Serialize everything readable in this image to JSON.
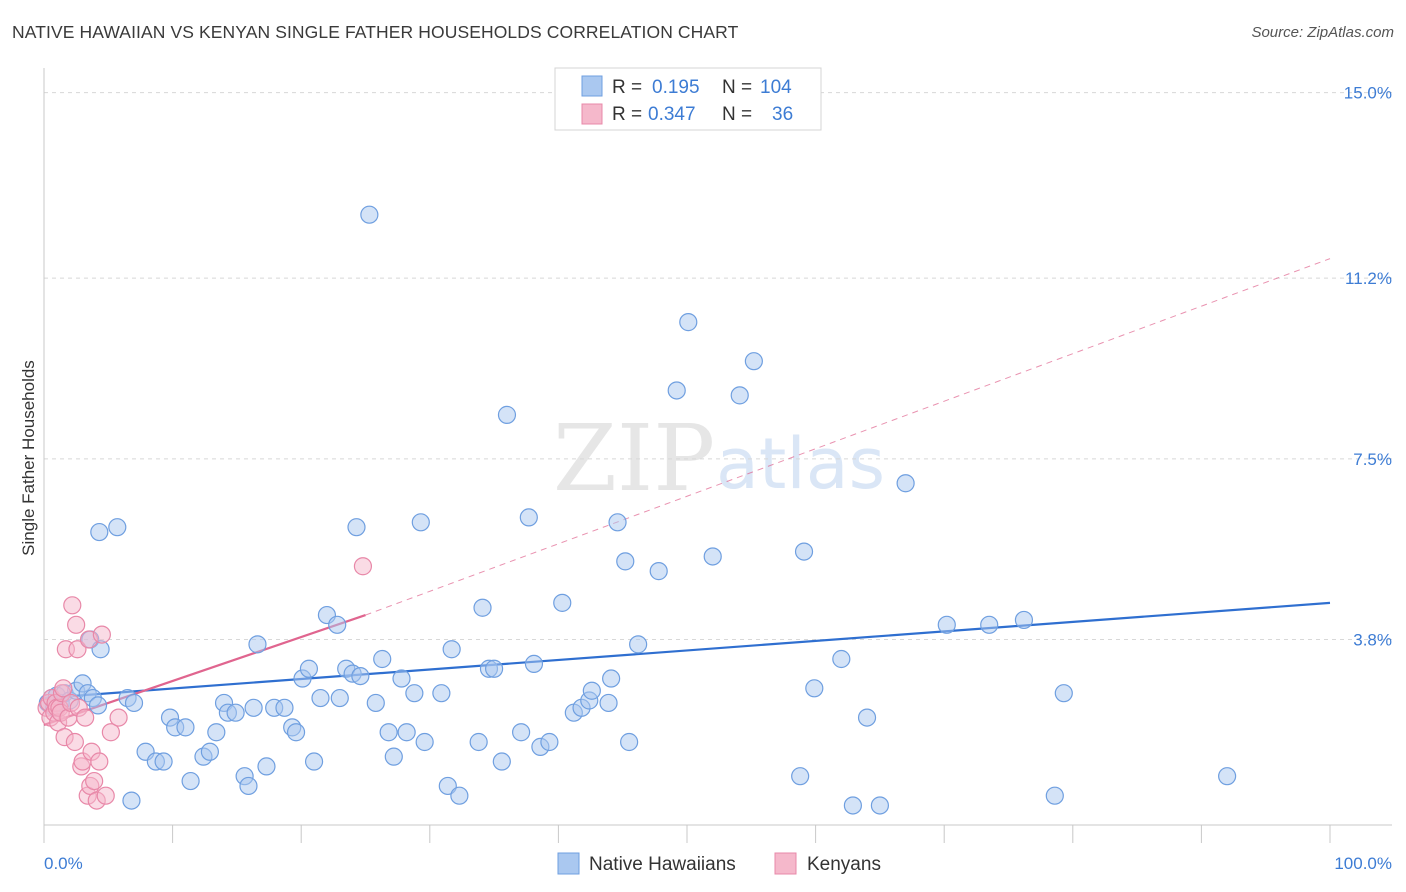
{
  "title": "NATIVE HAWAIIAN VS KENYAN SINGLE FATHER HOUSEHOLDS CORRELATION CHART",
  "source": "Source: ZipAtlas.com",
  "watermark": {
    "zip": "ZIP",
    "atlas": "atlas"
  },
  "legend_top": {
    "rows": [
      {
        "r_label": "R =",
        "r_value": "0.195",
        "n_label": "N =",
        "n_value": "104"
      },
      {
        "r_label": "R =",
        "r_value": "0.347",
        "n_label": "N =",
        "n_value": "36"
      }
    ]
  },
  "legend_bottom": [
    "Native Hawaiians",
    "Kenyans"
  ],
  "colors": {
    "blue_fill": "#aac8f0",
    "blue_stroke": "#6f9fe0",
    "blue_line": "#2f6fd0",
    "pink_fill": "#f5b8cb",
    "pink_stroke": "#e888a8",
    "pink_line": "#e0658f",
    "axis_text": "#3d7cd4",
    "grid": "#d8d8d8"
  },
  "chart_data": {
    "type": "scatter",
    "title": "NATIVE HAWAIIAN VS KENYAN SINGLE FATHER HOUSEHOLDS CORRELATION CHART",
    "xlabel": "",
    "ylabel": "Single Father Households",
    "xlim": [
      0,
      100
    ],
    "ylim": [
      0,
      15.3
    ],
    "x_tick_labels": [
      "0.0%",
      "100.0%"
    ],
    "y_ticks": [
      3.8,
      7.5,
      11.2,
      15.0
    ],
    "y_tick_labels": [
      "3.8%",
      "7.5%",
      "11.2%",
      "15.0%"
    ],
    "grid": true,
    "legend_position": "top-center",
    "series": [
      {
        "name": "Native Hawaiians",
        "color": "#aac8f0",
        "r": 0.195,
        "n": 104,
        "trend": {
          "x": [
            0,
            100
          ],
          "y": [
            2.6,
            4.55
          ],
          "style": "solid"
        },
        "points": [
          [
            0.3,
            2.5
          ],
          [
            0.6,
            2.6
          ],
          [
            0.8,
            2.4
          ],
          [
            1.0,
            2.65
          ],
          [
            1.3,
            2.5
          ],
          [
            1.6,
            2.7
          ],
          [
            2,
            2.55
          ],
          [
            2.5,
            2.75
          ],
          [
            3.0,
            2.9
          ],
          [
            3.4,
            2.7
          ],
          [
            3.8,
            2.6
          ],
          [
            4.2,
            2.45
          ],
          [
            3.6,
            3.8
          ],
          [
            4.4,
            3.6
          ],
          [
            4.3,
            6.0
          ],
          [
            5.7,
            6.1
          ],
          [
            6.5,
            2.6
          ],
          [
            7.0,
            2.5
          ],
          [
            6.8,
            0.5
          ],
          [
            7.9,
            1.5
          ],
          [
            8.7,
            1.3
          ],
          [
            9.3,
            1.3
          ],
          [
            9.8,
            2.2
          ],
          [
            10.2,
            2.0
          ],
          [
            11.0,
            2.0
          ],
          [
            11.4,
            0.9
          ],
          [
            12.4,
            1.4
          ],
          [
            12.9,
            1.5
          ],
          [
            13.4,
            1.9
          ],
          [
            14.0,
            2.5
          ],
          [
            14.3,
            2.3
          ],
          [
            14.9,
            2.3
          ],
          [
            15.6,
            1.0
          ],
          [
            15.9,
            0.8
          ],
          [
            16.3,
            2.4
          ],
          [
            16.6,
            3.7
          ],
          [
            17.3,
            1.2
          ],
          [
            17.9,
            2.4
          ],
          [
            18.7,
            2.4
          ],
          [
            19.3,
            2.0
          ],
          [
            19.6,
            1.9
          ],
          [
            20.1,
            3.0
          ],
          [
            20.6,
            3.2
          ],
          [
            21.0,
            1.3
          ],
          [
            21.5,
            2.6
          ],
          [
            22.0,
            4.3
          ],
          [
            22.8,
            4.1
          ],
          [
            23.0,
            2.6
          ],
          [
            23.5,
            3.2
          ],
          [
            24.0,
            3.1
          ],
          [
            24.6,
            3.05
          ],
          [
            24.3,
            6.1
          ],
          [
            25.3,
            12.5
          ],
          [
            25.8,
            2.5
          ],
          [
            26.3,
            3.4
          ],
          [
            26.8,
            1.9
          ],
          [
            27.2,
            1.4
          ],
          [
            27.8,
            3.0
          ],
          [
            28.2,
            1.9
          ],
          [
            28.8,
            2.7
          ],
          [
            29.3,
            6.2
          ],
          [
            29.6,
            1.7
          ],
          [
            30.9,
            2.7
          ],
          [
            31.4,
            0.8
          ],
          [
            31.7,
            3.6
          ],
          [
            32.3,
            0.6
          ],
          [
            33.8,
            1.7
          ],
          [
            34.1,
            4.45
          ],
          [
            34.6,
            3.2
          ],
          [
            35.0,
            3.2
          ],
          [
            35.6,
            1.3
          ],
          [
            36.0,
            8.4
          ],
          [
            37.1,
            1.9
          ],
          [
            37.7,
            6.3
          ],
          [
            38.1,
            3.3
          ],
          [
            38.6,
            1.6
          ],
          [
            39.3,
            1.7
          ],
          [
            40.3,
            4.55
          ],
          [
            41.2,
            2.3
          ],
          [
            41.8,
            2.4
          ],
          [
            42.4,
            2.55
          ],
          [
            42.6,
            2.75
          ],
          [
            43.9,
            2.5
          ],
          [
            44.1,
            3.0
          ],
          [
            44.6,
            6.2
          ],
          [
            45.5,
            1.7
          ],
          [
            45.2,
            5.4
          ],
          [
            46.2,
            3.7
          ],
          [
            47.8,
            5.2
          ],
          [
            49.2,
            8.9
          ],
          [
            50.1,
            10.3
          ],
          [
            52.0,
            5.5
          ],
          [
            54.1,
            8.8
          ],
          [
            55.2,
            9.5
          ],
          [
            58.8,
            1.0
          ],
          [
            59.1,
            5.6
          ],
          [
            59.9,
            2.8
          ],
          [
            62.0,
            3.4
          ],
          [
            62.9,
            0.4
          ],
          [
            64.0,
            2.2
          ],
          [
            65.0,
            0.4
          ],
          [
            67.0,
            7.0
          ],
          [
            70.2,
            4.1
          ],
          [
            73.5,
            4.1
          ],
          [
            76.2,
            4.2
          ],
          [
            78.6,
            0.6
          ],
          [
            79.3,
            2.7
          ],
          [
            92.0,
            1.0
          ]
        ]
      },
      {
        "name": "Kenyans",
        "color": "#f5b8cb",
        "r": 0.347,
        "n": 36,
        "trend": {
          "x": [
            0,
            25
          ],
          "y": [
            2.05,
            4.3
          ],
          "style": "solid"
        },
        "trend_extension": {
          "x": [
            25,
            100
          ],
          "y": [
            4.3,
            11.6
          ],
          "style": "dashed"
        },
        "points": [
          [
            0.2,
            2.4
          ],
          [
            0.4,
            2.5
          ],
          [
            0.5,
            2.2
          ],
          [
            0.6,
            2.6
          ],
          [
            0.8,
            2.3
          ],
          [
            0.9,
            2.5
          ],
          [
            1.0,
            2.4
          ],
          [
            1.1,
            2.1
          ],
          [
            1.2,
            2.4
          ],
          [
            1.3,
            2.3
          ],
          [
            1.4,
            2.7
          ],
          [
            1.5,
            2.8
          ],
          [
            1.6,
            1.8
          ],
          [
            1.7,
            3.6
          ],
          [
            1.9,
            2.2
          ],
          [
            2.1,
            2.5
          ],
          [
            2.2,
            4.5
          ],
          [
            2.4,
            1.7
          ],
          [
            2.5,
            4.1
          ],
          [
            2.6,
            3.6
          ],
          [
            2.7,
            2.4
          ],
          [
            2.9,
            1.2
          ],
          [
            3.0,
            1.3
          ],
          [
            3.2,
            2.2
          ],
          [
            3.4,
            0.6
          ],
          [
            3.5,
            3.8
          ],
          [
            3.6,
            0.8
          ],
          [
            3.7,
            1.5
          ],
          [
            3.9,
            0.9
          ],
          [
            4.1,
            0.5
          ],
          [
            4.3,
            1.3
          ],
          [
            4.5,
            3.9
          ],
          [
            4.8,
            0.6
          ],
          [
            5.2,
            1.9
          ],
          [
            5.8,
            2.2
          ],
          [
            24.8,
            5.3
          ]
        ]
      }
    ]
  }
}
